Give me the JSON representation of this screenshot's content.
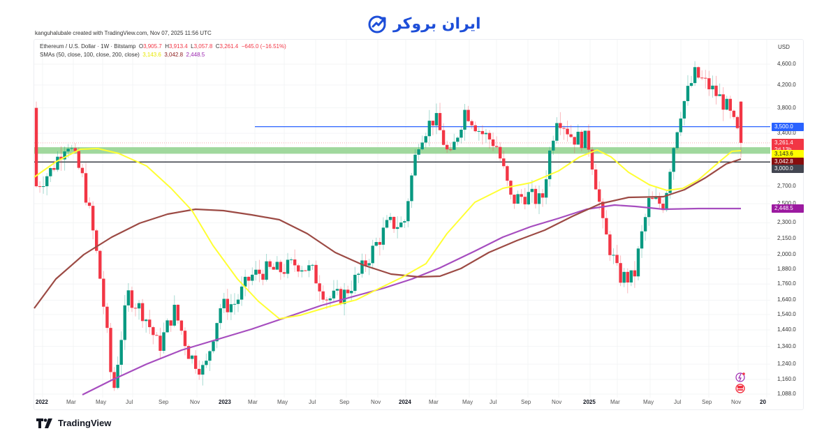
{
  "brand": {
    "name": "ایران بروکر",
    "color": "#1d4ed8"
  },
  "credit": "kanguhalubale created with TradingView.com, Nov 07, 2025 11:56 UTC",
  "legend": {
    "symbol": "Ethereum / U.S. Dollar · 1W · Bitstamp",
    "o_label": "O",
    "o": "3,905.7",
    "h_label": "H",
    "h": "3,913.4",
    "l_label": "L",
    "l": "3,057.8",
    "c_label": "C",
    "c": "3,261.4",
    "change": "−645.0 (−16.51%)",
    "sma_label": "SMAs (50, close, 100, close, 200, close)",
    "sma50": "3,143.6",
    "sma100": "3,042.8",
    "sma200": "2,448.5"
  },
  "price_axis": {
    "currency": "USD",
    "ticks": [
      "4,600.0",
      "4,200.0",
      "3,800.0",
      "3,400.0",
      "2,700.0",
      "2,500.0",
      "2,300.0",
      "2,150.0",
      "2,000.0",
      "1,880.0",
      "1,760.0",
      "1,640.0",
      "1,540.0",
      "1,440.0",
      "1,340.0",
      "1,240.0",
      "1,160.0",
      "1,088.0"
    ],
    "badges": [
      {
        "text": "3,500.0",
        "bg": "#2962ff",
        "fg": "#ffffff"
      },
      {
        "text": "3,261.4",
        "sub": "2d 13h",
        "bg": "#f23645",
        "fg": "#ffffff"
      },
      {
        "text": "3,143.6",
        "bg": "#ffff00",
        "fg": "#131722"
      },
      {
        "text": "3,042.8",
        "bg": "#880e0e",
        "fg": "#ffffff"
      },
      {
        "text": "3,000.0",
        "bg": "#434651",
        "fg": "#ffffff"
      },
      {
        "text": "2,448.5",
        "bg": "#9c1aa0",
        "fg": "#ffffff"
      }
    ]
  },
  "time_axis": [
    "2022",
    "Mar",
    "May",
    "Jul",
    "Sep",
    "Nov",
    "2023",
    "Mar",
    "May",
    "Jul",
    "Sep",
    "Nov",
    "2024",
    "Mar",
    "May",
    "Jul",
    "Sep",
    "Nov",
    "2025",
    "Mar",
    "May",
    "Jul",
    "Sep",
    "Nov",
    "20"
  ],
  "footer": {
    "logo": "TradingView"
  },
  "colors": {
    "up": "#089981",
    "down": "#f23645",
    "sma50": "#ffff33",
    "sma100": "#9c4a44",
    "sma200": "#a64dbf",
    "hline_blue": "#2962ff",
    "hline_black": "#131722",
    "zone": "#8fd18c"
  },
  "chart_data": {
    "type": "candlestick",
    "title": "Ethereum / U.S. Dollar · 1W · Bitstamp",
    "xlabel": "",
    "ylabel": "USD",
    "yscale": "log",
    "ylim": [
      1050,
      4950
    ],
    "x_range": [
      "2022-01",
      "2025-11"
    ],
    "last_candle": {
      "open": 3905.7,
      "high": 3913.4,
      "low": 3057.8,
      "close": 3261.4,
      "change": -645.0,
      "change_pct": -16.51
    },
    "indicators": [
      {
        "name": "SMA 50",
        "value": 3143.6,
        "color": "#ffff33"
      },
      {
        "name": "SMA 100",
        "value": 3042.8,
        "color": "#9c4a44"
      },
      {
        "name": "SMA 200",
        "value": 2448.5,
        "color": "#a64dbf"
      }
    ],
    "horizontal_lines": [
      {
        "price": 3500.0,
        "color": "#2962ff",
        "start": "2024-02"
      },
      {
        "price": 3000.0,
        "color": "#131722"
      }
    ],
    "zones": [
      {
        "from": 3110,
        "to": 3200,
        "color": "#8fd18c"
      }
    ],
    "monthly_closes_approx": {
      "x": [
        "2022-01",
        "2022-02",
        "2022-03",
        "2022-04",
        "2022-05",
        "2022-06",
        "2022-07",
        "2022-08",
        "2022-09",
        "2022-10",
        "2022-11",
        "2022-12",
        "2023-01",
        "2023-02",
        "2023-03",
        "2023-04",
        "2023-05",
        "2023-06",
        "2023-07",
        "2023-08",
        "2023-09",
        "2023-10",
        "2023-11",
        "2023-12",
        "2024-01",
        "2024-02",
        "2024-03",
        "2024-04",
        "2024-05",
        "2024-06",
        "2024-07",
        "2024-08",
        "2024-09",
        "2024-10",
        "2024-11",
        "2024-12",
        "2025-01",
        "2025-02",
        "2025-03",
        "2025-04",
        "2025-05",
        "2025-06",
        "2025-07",
        "2025-08",
        "2025-09",
        "2025-10",
        "2025-11"
      ],
      "close": [
        2700,
        2900,
        3300,
        2800,
        1950,
        1070,
        1680,
        1550,
        1330,
        1570,
        1290,
        1200,
        1590,
        1620,
        1820,
        1870,
        1870,
        1930,
        1860,
        1650,
        1670,
        1820,
        2050,
        2290,
        2280,
        3340,
        3650,
        3020,
        3780,
        3420,
        3250,
        2530,
        2600,
        2520,
        3700,
        3340,
        3300,
        2250,
        1820,
        1800,
        2520,
        2500,
        3700,
        4400,
        4150,
        3850,
        3260
      ]
    }
  }
}
